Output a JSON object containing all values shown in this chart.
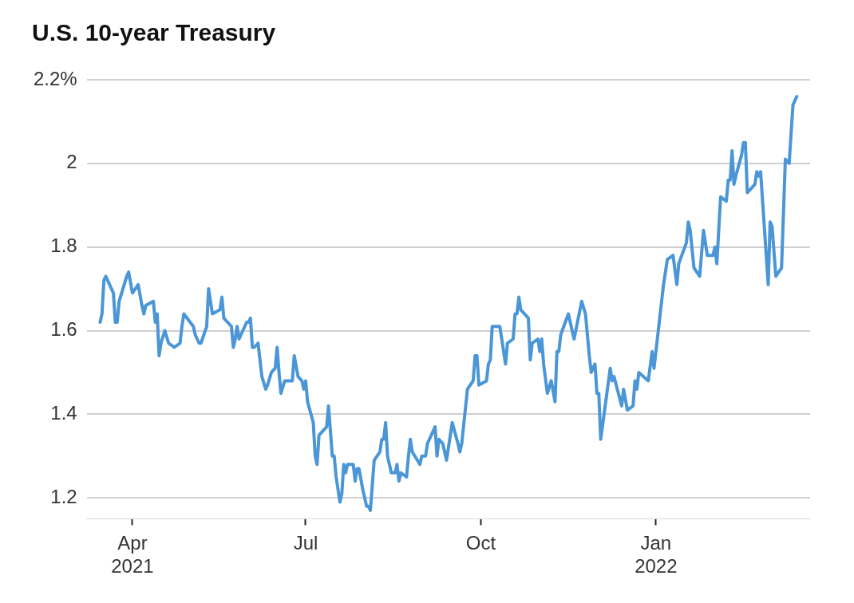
{
  "chart_data": {
    "type": "line",
    "title": "U.S. 10-year Treasury",
    "series": [
      {
        "color": "#4a96d6",
        "x": [
          "2021-03-15",
          "2021-03-16",
          "2021-03-17",
          "2021-03-18",
          "2021-03-22",
          "2021-03-23",
          "2021-03-24",
          "2021-03-25",
          "2021-03-29",
          "2021-03-30",
          "2021-04-01",
          "2021-04-04",
          "2021-04-06",
          "2021-04-07",
          "2021-04-08",
          "2021-04-12",
          "2021-04-13",
          "2021-04-14",
          "2021-04-15",
          "2021-04-16",
          "2021-04-18",
          "2021-04-20",
          "2021-04-23",
          "2021-04-26",
          "2021-04-27",
          "2021-04-28",
          "2021-05-03",
          "2021-05-04",
          "2021-05-06",
          "2021-05-07",
          "2021-05-10",
          "2021-05-11",
          "2021-05-13",
          "2021-05-17",
          "2021-05-18",
          "2021-05-19",
          "2021-05-23",
          "2021-05-24",
          "2021-05-25",
          "2021-05-26",
          "2021-05-27",
          "2021-05-28",
          "2021-05-31",
          "2021-06-01",
          "2021-06-02",
          "2021-06-03",
          "2021-06-04",
          "2021-06-06",
          "2021-06-08",
          "2021-06-10",
          "2021-06-11",
          "2021-06-13",
          "2021-06-15",
          "2021-06-16",
          "2021-06-17",
          "2021-06-18",
          "2021-06-20",
          "2021-06-21",
          "2021-06-24",
          "2021-06-25",
          "2021-06-27",
          "2021-06-29",
          "2021-06-30",
          "2021-07-01",
          "2021-07-02",
          "2021-07-05",
          "2021-07-06",
          "2021-07-07",
          "2021-07-08",
          "2021-07-12",
          "2021-07-13",
          "2021-07-15",
          "2021-07-16",
          "2021-07-17",
          "2021-07-19",
          "2021-07-20",
          "2021-07-21",
          "2021-07-22",
          "2021-07-23",
          "2021-07-26",
          "2021-07-27",
          "2021-07-28",
          "2021-07-29",
          "2021-07-31",
          "2021-08-02",
          "2021-08-03",
          "2021-08-04",
          "2021-08-06",
          "2021-08-09",
          "2021-08-10",
          "2021-08-11",
          "2021-08-12",
          "2021-08-13",
          "2021-08-15",
          "2021-08-17",
          "2021-08-18",
          "2021-08-19",
          "2021-08-20",
          "2021-08-23",
          "2021-08-24",
          "2021-08-25",
          "2021-08-26",
          "2021-08-30",
          "2021-08-31",
          "2021-09-02",
          "2021-09-03",
          "2021-09-07",
          "2021-09-08",
          "2021-09-09",
          "2021-09-11",
          "2021-09-13",
          "2021-09-16",
          "2021-09-19",
          "2021-09-20",
          "2021-09-21",
          "2021-09-24",
          "2021-09-27",
          "2021-09-28",
          "2021-09-29",
          "2021-09-30",
          "2021-10-04",
          "2021-10-05",
          "2021-10-06",
          "2021-10-07",
          "2021-10-11",
          "2021-10-14",
          "2021-10-15",
          "2021-10-18",
          "2021-10-19",
          "2021-10-20",
          "2021-10-21",
          "2021-10-22",
          "2021-10-26",
          "2021-10-27",
          "2021-10-28",
          "2021-10-31",
          "2021-11-01",
          "2021-11-02",
          "2021-11-03",
          "2021-11-05",
          "2021-11-07",
          "2021-11-09",
          "2021-11-10",
          "2021-11-11",
          "2021-11-12",
          "2021-11-16",
          "2021-11-19",
          "2021-11-23",
          "2021-11-25",
          "2021-11-27",
          "2021-11-28",
          "2021-11-30",
          "2021-12-01",
          "2021-12-02",
          "2021-12-03",
          "2021-12-08",
          "2021-12-09",
          "2021-12-10",
          "2021-12-14",
          "2021-12-15",
          "2021-12-17",
          "2021-12-20",
          "2021-12-21",
          "2021-12-22",
          "2021-12-23",
          "2021-12-28",
          "2021-12-30",
          "2021-12-31",
          "2022-01-01",
          "2022-01-03",
          "2022-01-05",
          "2022-01-07",
          "2022-01-10",
          "2022-01-12",
          "2022-01-13",
          "2022-01-17",
          "2022-01-18",
          "2022-01-19",
          "2022-01-21",
          "2022-01-24",
          "2022-01-26",
          "2022-01-28",
          "2022-01-31",
          "2022-02-01",
          "2022-02-02",
          "2022-02-04",
          "2022-02-07",
          "2022-02-08",
          "2022-02-09",
          "2022-02-10",
          "2022-02-11",
          "2022-02-12",
          "2022-02-15",
          "2022-02-16",
          "2022-02-17",
          "2022-02-18",
          "2022-02-22",
          "2022-02-23",
          "2022-02-24",
          "2022-02-25",
          "2022-03-01",
          "2022-03-02",
          "2022-03-03",
          "2022-03-05",
          "2022-03-08",
          "2022-03-10",
          "2022-03-12",
          "2022-03-14",
          "2022-03-16"
        ],
        "values": [
          1.62,
          1.64,
          1.72,
          1.73,
          1.69,
          1.62,
          1.62,
          1.67,
          1.73,
          1.74,
          1.69,
          1.71,
          1.66,
          1.64,
          1.66,
          1.67,
          1.62,
          1.64,
          1.54,
          1.57,
          1.6,
          1.57,
          1.56,
          1.57,
          1.61,
          1.64,
          1.61,
          1.59,
          1.57,
          1.57,
          1.61,
          1.7,
          1.64,
          1.65,
          1.68,
          1.63,
          1.61,
          1.56,
          1.58,
          1.61,
          1.58,
          1.59,
          1.62,
          1.62,
          1.63,
          1.56,
          1.56,
          1.57,
          1.49,
          1.46,
          1.47,
          1.5,
          1.51,
          1.56,
          1.5,
          1.45,
          1.48,
          1.48,
          1.48,
          1.54,
          1.49,
          1.48,
          1.46,
          1.48,
          1.43,
          1.38,
          1.3,
          1.28,
          1.35,
          1.37,
          1.42,
          1.3,
          1.3,
          1.25,
          1.19,
          1.21,
          1.28,
          1.26,
          1.28,
          1.28,
          1.24,
          1.27,
          1.27,
          1.22,
          1.18,
          1.18,
          1.17,
          1.29,
          1.31,
          1.34,
          1.34,
          1.38,
          1.3,
          1.26,
          1.26,
          1.28,
          1.24,
          1.26,
          1.25,
          1.3,
          1.34,
          1.31,
          1.28,
          1.3,
          1.3,
          1.33,
          1.37,
          1.3,
          1.34,
          1.33,
          1.29,
          1.38,
          1.33,
          1.31,
          1.33,
          1.46,
          1.48,
          1.54,
          1.54,
          1.47,
          1.48,
          1.52,
          1.53,
          1.61,
          1.61,
          1.52,
          1.57,
          1.58,
          1.64,
          1.64,
          1.68,
          1.65,
          1.63,
          1.53,
          1.57,
          1.58,
          1.55,
          1.58,
          1.52,
          1.45,
          1.48,
          1.43,
          1.55,
          1.55,
          1.59,
          1.64,
          1.58,
          1.67,
          1.64,
          1.54,
          1.5,
          1.52,
          1.45,
          1.45,
          1.34,
          1.51,
          1.48,
          1.49,
          1.42,
          1.46,
          1.41,
          1.42,
          1.48,
          1.46,
          1.5,
          1.48,
          1.55,
          1.51,
          1.55,
          1.63,
          1.71,
          1.77,
          1.78,
          1.71,
          1.76,
          1.81,
          1.86,
          1.84,
          1.75,
          1.73,
          1.84,
          1.78,
          1.78,
          1.8,
          1.76,
          1.92,
          1.91,
          1.96,
          1.96,
          2.03,
          1.95,
          1.97,
          2.02,
          2.05,
          2.05,
          1.93,
          1.95,
          1.98,
          1.97,
          1.98,
          1.71,
          1.86,
          1.85,
          1.73,
          1.75,
          2.01,
          2,
          2.14,
          2.16
        ]
      }
    ],
    "xlim": [
      "2021-03-08",
      "2022-03-23"
    ],
    "xticks": [
      {
        "value": "2021-04-01",
        "label": "Apr\n2021"
      },
      {
        "value": "2021-07-01",
        "label": "Jul"
      },
      {
        "value": "2021-10-01",
        "label": "Oct"
      },
      {
        "value": "2022-01-01",
        "label": "Jan\n2022"
      }
    ],
    "ylim": [
      1.15,
      2.2
    ],
    "yticks": [
      1.2,
      1.4,
      1.6,
      1.8,
      2,
      {
        "value": 2.2,
        "label": "2.2%"
      }
    ],
    "grid": "y",
    "legend": false,
    "marker": "none",
    "line_style": "solid"
  }
}
